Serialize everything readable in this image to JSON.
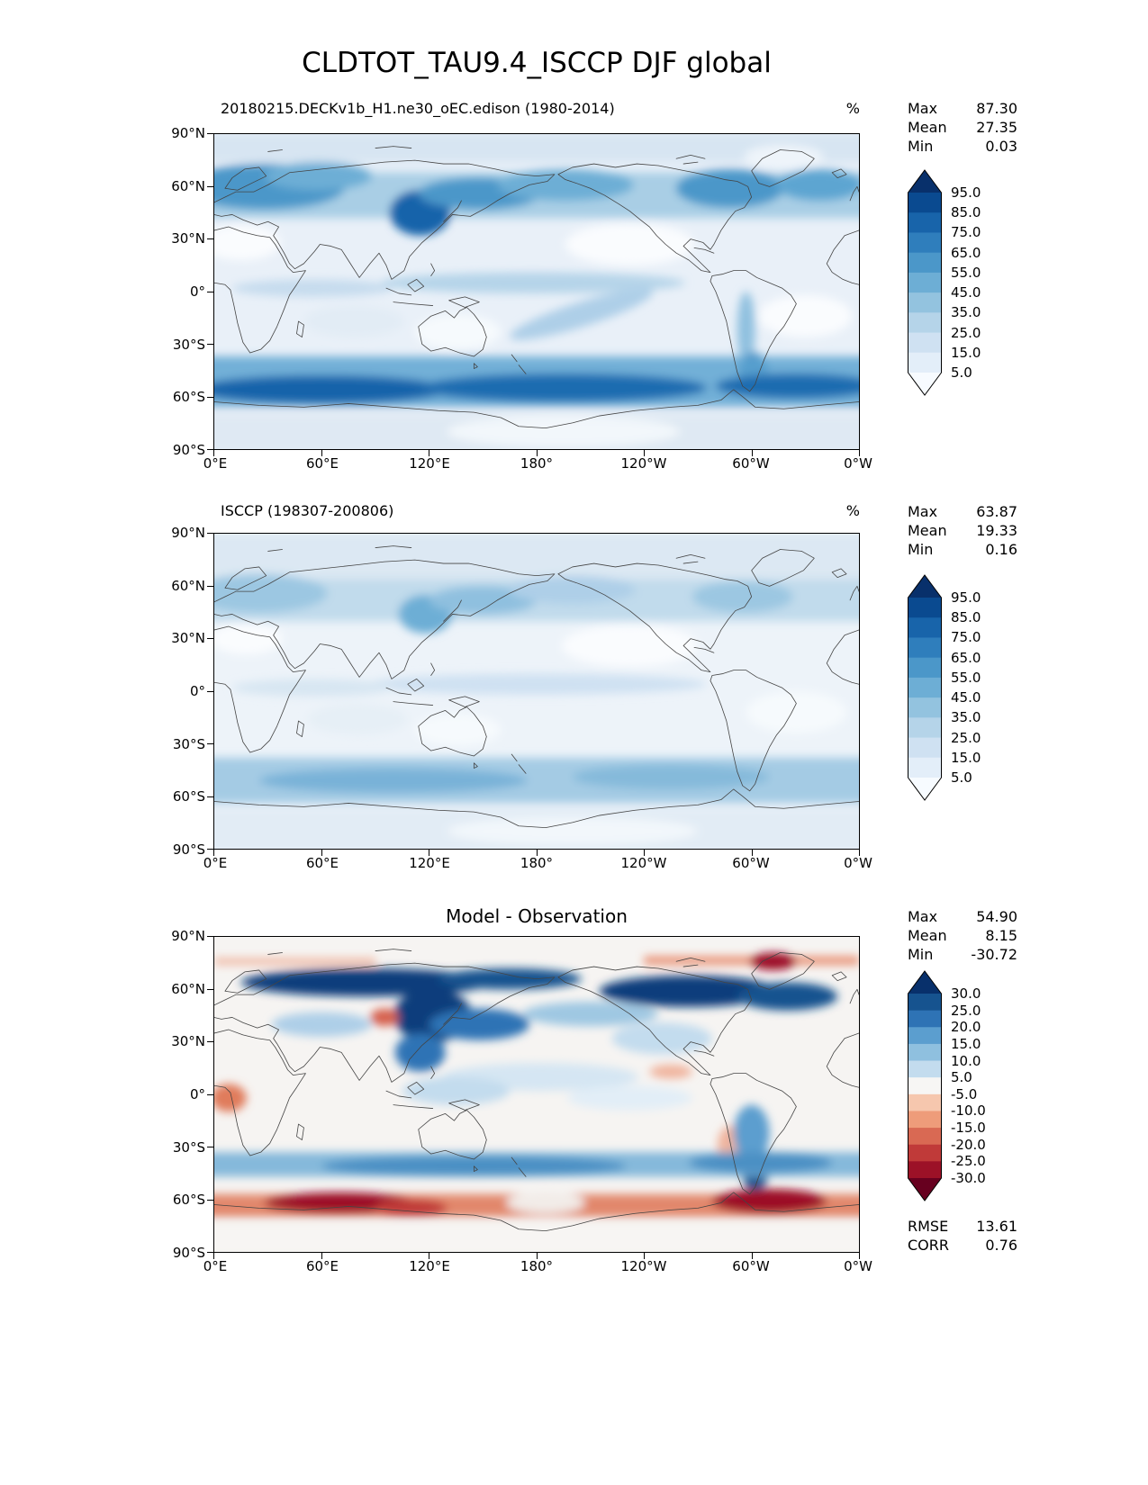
{
  "title": "CLDTOT_TAU9.4_ISCCP DJF global",
  "axes": {
    "lat_ticks": [
      "90°N",
      "60°N",
      "30°N",
      "0°",
      "30°S",
      "60°S",
      "90°S"
    ],
    "lon_ticks": [
      "0°E",
      "60°E",
      "120°E",
      "180°",
      "120°W",
      "60°W",
      "0°W"
    ]
  },
  "panels": [
    {
      "subtitle": "20180215.DECKv1b_H1.ne30_oEC.edison (1980-2014)",
      "units": "%",
      "stats": {
        "max_label": "Max",
        "max_value": "87.30",
        "mean_label": "Mean",
        "mean_value": "27.35",
        "min_label": "Min",
        "min_value": "0.03"
      },
      "colorbar": {
        "ticks": [
          "95.0",
          "85.0",
          "75.0",
          "65.0",
          "55.0",
          "45.0",
          "35.0",
          "25.0",
          "15.0",
          "5.0"
        ],
        "colors": [
          "#08306b",
          "#0a4a90",
          "#1864aa",
          "#2f7ebc",
          "#4b97c9",
          "#6daed5",
          "#93c3df",
          "#b5d4e9",
          "#cfe1f2",
          "#e3eef9",
          "#f7fbff"
        ]
      }
    },
    {
      "subtitle": "ISCCP (198307-200806)",
      "units": "%",
      "stats": {
        "max_label": "Max",
        "max_value": "63.87",
        "mean_label": "Mean",
        "mean_value": "19.33",
        "min_label": "Min",
        "min_value": "0.16"
      },
      "colorbar": {
        "ticks": [
          "95.0",
          "85.0",
          "75.0",
          "65.0",
          "55.0",
          "45.0",
          "35.0",
          "25.0",
          "15.0",
          "5.0"
        ],
        "colors": [
          "#08306b",
          "#0a4a90",
          "#1864aa",
          "#2f7ebc",
          "#4b97c9",
          "#6daed5",
          "#93c3df",
          "#b5d4e9",
          "#cfe1f2",
          "#e3eef9",
          "#f7fbff"
        ]
      }
    },
    {
      "subtitle": "Model - Observation",
      "stats": {
        "max_label": "Max",
        "max_value": "54.90",
        "mean_label": "Mean",
        "mean_value": "8.15",
        "min_label": "Min",
        "min_value": "-30.72"
      },
      "colorbar": {
        "ticks": [
          "30.0",
          "25.0",
          "20.0",
          "15.0",
          "10.0",
          "5.0",
          "-5.0",
          "-10.0",
          "-15.0",
          "-20.0",
          "-25.0",
          "-30.0"
        ],
        "colors": [
          "#08306b",
          "#16538f",
          "#2e73b5",
          "#5b9ecf",
          "#8fc0df",
          "#c3dcee",
          "#f7f6f4",
          "#f6c7ae",
          "#ee9c7a",
          "#d96953",
          "#c03a39",
          "#9c1127",
          "#67001f"
        ]
      },
      "footer_stats": {
        "rmse_label": "RMSE",
        "rmse_value": "13.61",
        "corr_label": "CORR",
        "corr_value": "0.76"
      }
    }
  ],
  "chart_data": [
    {
      "type": "heatmap",
      "variable": "CLDTOT_TAU9.4_ISCCP",
      "season": "DJF",
      "region": "global",
      "title": "20180215.DECKv1b_H1.ne30_oEC.edison (1980-2014)",
      "units": "%",
      "stats": {
        "max": 87.3,
        "mean": 27.35,
        "min": 0.03
      },
      "colorbar_levels": [
        5,
        15,
        25,
        35,
        45,
        55,
        65,
        75,
        85,
        95
      ],
      "colorbar_extend": "both",
      "colormap": "Blues",
      "x_ticks": [
        "0°E",
        "60°E",
        "120°E",
        "180°",
        "120°W",
        "60°W",
        "0°W"
      ],
      "y_ticks": [
        "90°N",
        "60°N",
        "30°N",
        "0°",
        "30°S",
        "60°S",
        "90°S"
      ]
    },
    {
      "type": "heatmap",
      "variable": "CLDTOT_TAU9.4_ISCCP",
      "season": "DJF",
      "region": "global",
      "title": "ISCCP (198307-200806)",
      "units": "%",
      "stats": {
        "max": 63.87,
        "mean": 19.33,
        "min": 0.16
      },
      "colorbar_levels": [
        5,
        15,
        25,
        35,
        45,
        55,
        65,
        75,
        85,
        95
      ],
      "colorbar_extend": "both",
      "colormap": "Blues",
      "x_ticks": [
        "0°E",
        "60°E",
        "120°E",
        "180°",
        "120°W",
        "60°W",
        "0°W"
      ],
      "y_ticks": [
        "90°N",
        "60°N",
        "30°N",
        "0°",
        "30°S",
        "60°S",
        "90°S"
      ]
    },
    {
      "type": "heatmap",
      "variable": "CLDTOT_TAU9.4_ISCCP",
      "season": "DJF",
      "region": "global",
      "title": "Model - Observation",
      "units": "%",
      "stats": {
        "max": 54.9,
        "mean": 8.15,
        "min": -30.72
      },
      "colorbar_levels": [
        -30,
        -25,
        -20,
        -15,
        -10,
        -5,
        5,
        10,
        15,
        20,
        25,
        30
      ],
      "colorbar_extend": "both",
      "colormap": "RdBu_r",
      "rmse": 13.61,
      "corr": 0.76,
      "x_ticks": [
        "0°E",
        "60°E",
        "120°E",
        "180°",
        "120°W",
        "60°W",
        "0°W"
      ],
      "y_ticks": [
        "90°N",
        "60°N",
        "30°N",
        "0°",
        "30°S",
        "60°S",
        "90°S"
      ]
    }
  ]
}
